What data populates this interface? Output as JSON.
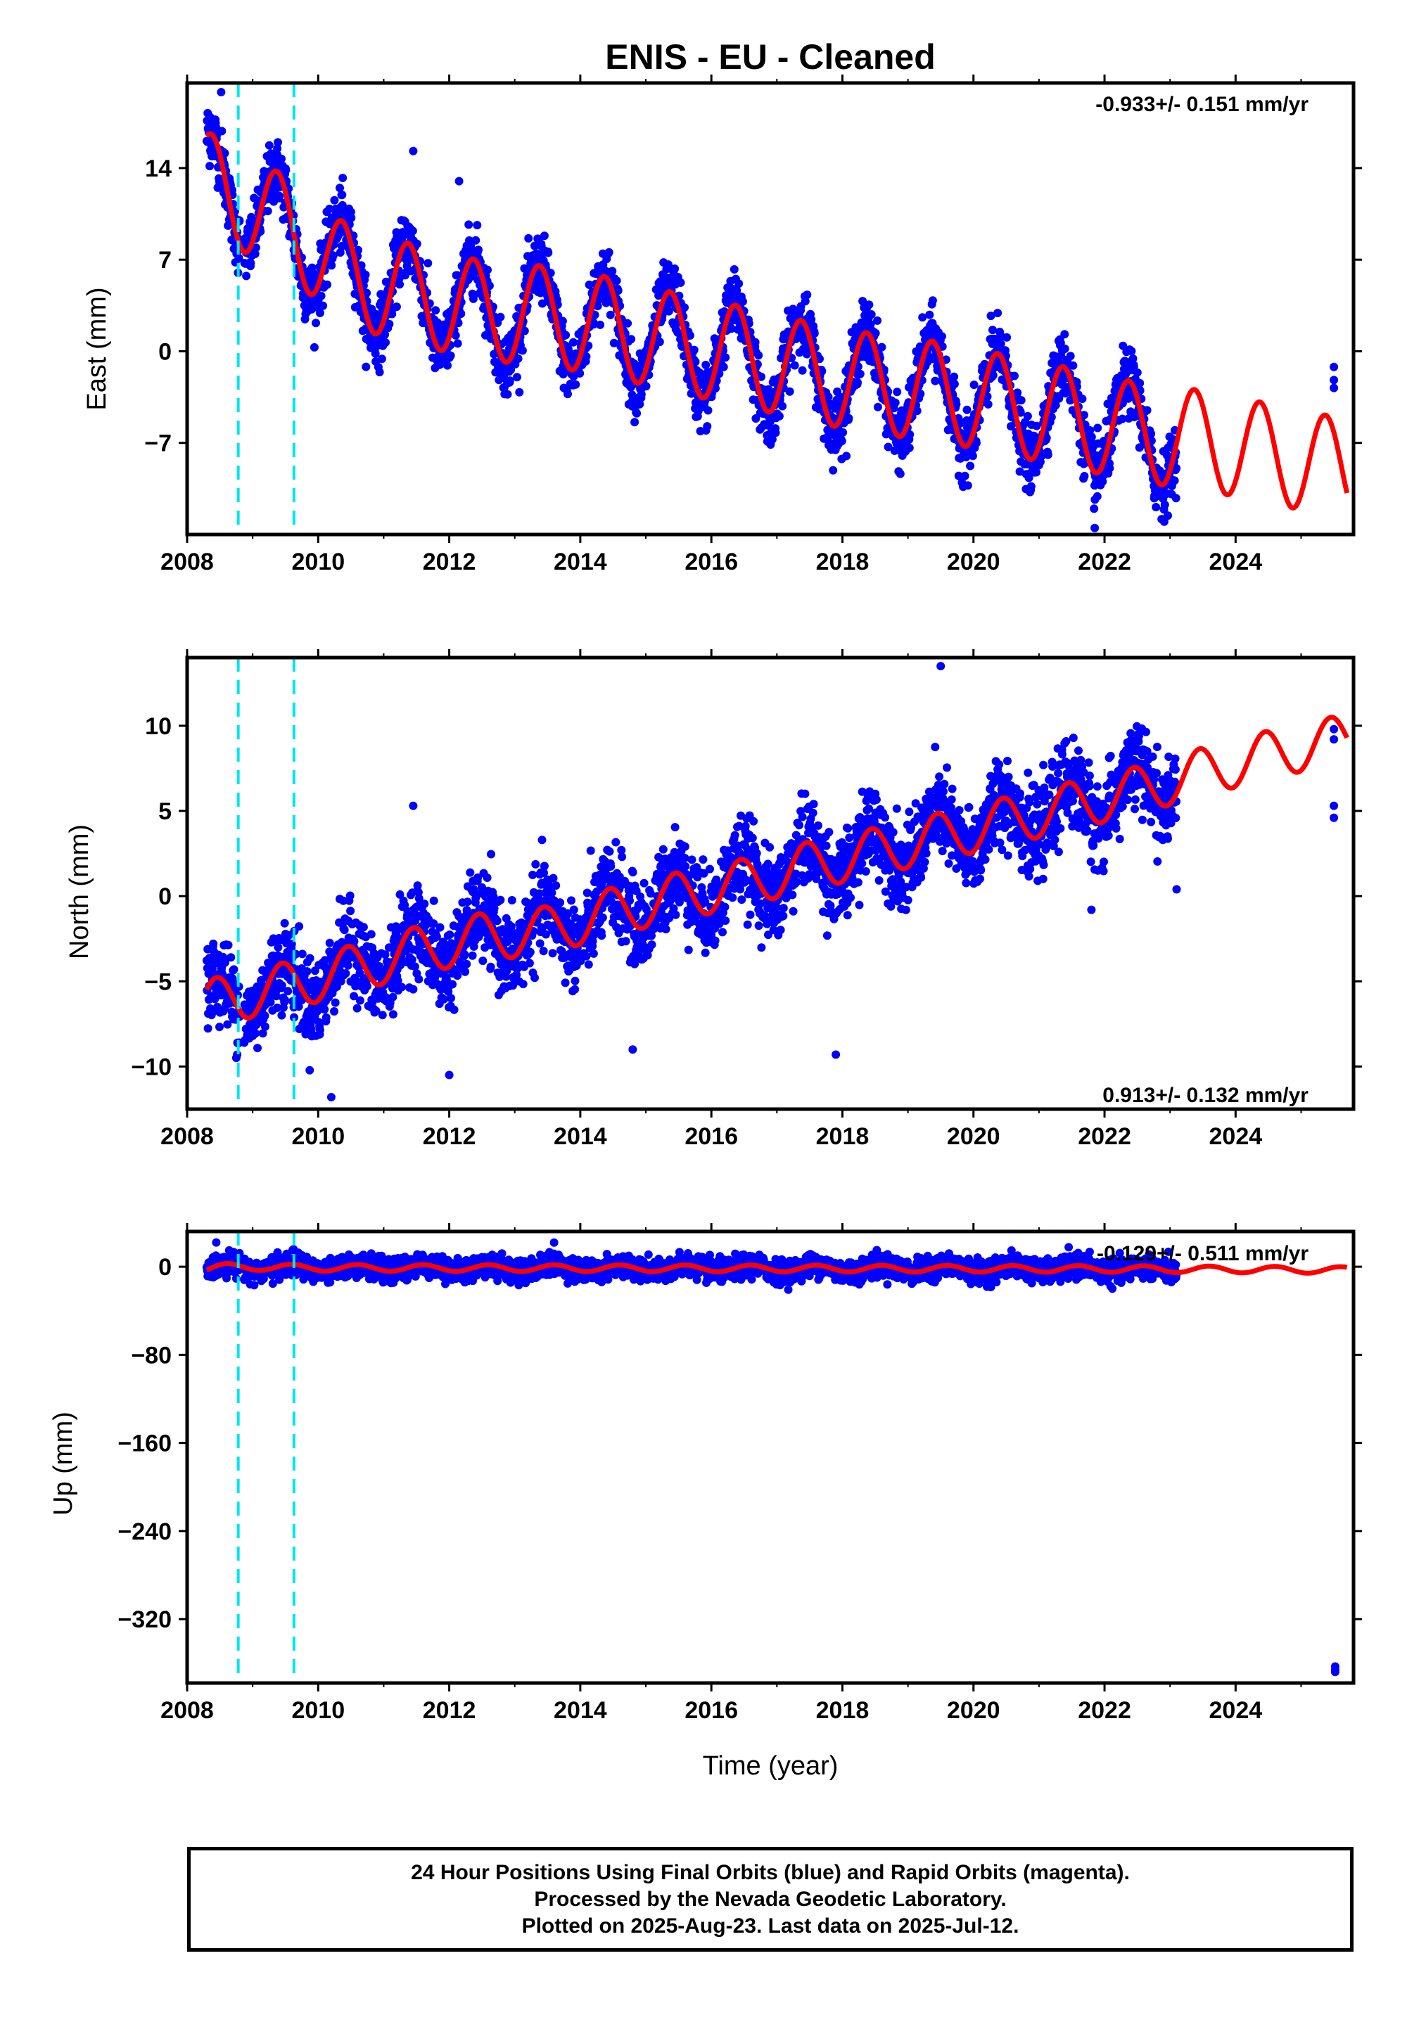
{
  "title": "ENIS  - EU - Cleaned",
  "colors": {
    "data": "#0000ff",
    "model": "#ff0000",
    "offset": "#00e5ee",
    "frame": "#000000"
  },
  "footer": {
    "line1": "24 Hour Positions Using Final Orbits (blue) and Rapid Orbits (magenta).",
    "line2": "Processed by the Nevada Geodetic Laboratory.",
    "line3": "Plotted on 2025-Aug-23. Last data on 2025-Jul-12."
  },
  "chart_data": [
    {
      "type": "scatter",
      "ylabel": "East (mm)",
      "xlabel": "",
      "xlim": [
        2008.0,
        2025.8
      ],
      "ylim": [
        -14.0,
        20.5
      ],
      "xticks": [
        "2008",
        "2010",
        "2012",
        "2014",
        "2016",
        "2018",
        "2020",
        "2022",
        "2024"
      ],
      "yticks": [
        14,
        7,
        0,
        -7
      ],
      "ytick_labels": [
        "14",
        "7",
        "0",
        "−7"
      ],
      "rate_label": "-0.933+/- 0.151 mm/yr",
      "rate_position": "top-right",
      "offsets": [
        2008.78,
        2009.63
      ],
      "model": {
        "t0": 2008.3,
        "intercept": 14.0,
        "slope": -0.933,
        "annual_amp": 3.8,
        "annual_peak": 0.37,
        "t_end": 2025.7,
        "knots": [
          [
            2008.3,
            13.0
          ],
          [
            2009.6,
            9.3
          ],
          [
            2010.5,
            5.6
          ],
          [
            2011.5,
            4.3
          ],
          [
            2012.5,
            3.1
          ],
          [
            2013.5,
            2.7
          ],
          [
            2014.5,
            1.8
          ],
          [
            2015.5,
            0.6
          ],
          [
            2016.5,
            -0.4
          ],
          [
            2017.5,
            -1.6
          ],
          [
            2018.5,
            -2.5
          ],
          [
            2019.5,
            -3.1
          ],
          [
            2020.5,
            -4.1
          ],
          [
            2021.5,
            -5.1
          ],
          [
            2022.5,
            -6.2
          ],
          [
            2023.5,
            -6.8
          ],
          [
            2024.5,
            -7.8
          ],
          [
            2025.7,
            -9.0
          ]
        ]
      },
      "data_span": [
        2008.3,
        2023.1
      ],
      "scatter_sd": 1.2,
      "extra_points": [
        [
          2008.35,
          17.9
        ],
        [
          2008.52,
          19.8
        ],
        [
          2011.45,
          15.3
        ],
        [
          2012.15,
          13.0
        ],
        [
          2021.85,
          -13.5
        ],
        [
          2025.5,
          -1.2
        ],
        [
          2025.5,
          -2.2
        ],
        [
          2025.5,
          -2.8
        ]
      ]
    },
    {
      "type": "scatter",
      "ylabel": "North (mm)",
      "xlabel": "",
      "xlim": [
        2008.0,
        2025.8
      ],
      "ylim": [
        -12.5,
        14.0
      ],
      "xticks": [
        "2008",
        "2010",
        "2012",
        "2014",
        "2016",
        "2018",
        "2020",
        "2022",
        "2024"
      ],
      "yticks": [
        10,
        5,
        0,
        -5,
        -10
      ],
      "ytick_labels": [
        "10",
        "5",
        "0",
        "−5",
        "−10"
      ],
      "rate_label": "0.913+/- 0.132 mm/yr",
      "rate_position": "bottom-right",
      "offsets": [
        2008.78,
        2009.63
      ],
      "model": {
        "t0": 2008.3,
        "intercept": -6.2,
        "slope": 0.913,
        "annual_amp": 1.4,
        "annual_peak": 0.45,
        "t_end": 2025.7,
        "knots": [
          [
            2008.3,
            -6.3
          ],
          [
            2009.6,
            -5.2
          ],
          [
            2010.5,
            -4.3
          ],
          [
            2011.5,
            -3.2
          ],
          [
            2012.5,
            -2.4
          ],
          [
            2013.5,
            -2.0
          ],
          [
            2014.5,
            -0.9
          ],
          [
            2015.5,
            0.0
          ],
          [
            2016.5,
            0.8
          ],
          [
            2017.5,
            1.8
          ],
          [
            2018.5,
            2.6
          ],
          [
            2019.5,
            3.5
          ],
          [
            2020.5,
            4.4
          ],
          [
            2021.5,
            5.3
          ],
          [
            2022.5,
            6.2
          ],
          [
            2023.5,
            7.3
          ],
          [
            2024.5,
            8.3
          ],
          [
            2025.7,
            9.3
          ]
        ]
      },
      "data_span": [
        2008.3,
        2023.1
      ],
      "scatter_sd": 1.2,
      "extra_points": [
        [
          2011.45,
          5.3
        ],
        [
          2012.0,
          -10.5
        ],
        [
          2014.8,
          -9.0
        ],
        [
          2017.9,
          -9.3
        ],
        [
          2010.2,
          -11.8
        ],
        [
          2019.5,
          13.5
        ],
        [
          2021.8,
          -0.8
        ],
        [
          2023.1,
          0.4
        ],
        [
          2025.5,
          9.8
        ],
        [
          2025.5,
          9.2
        ],
        [
          2025.5,
          5.3
        ],
        [
          2025.5,
          4.6
        ]
      ]
    },
    {
      "type": "scatter",
      "ylabel": "Up (mm)",
      "xlabel": "Time (year)",
      "xlim": [
        2008.0,
        2025.8
      ],
      "ylim": [
        -378.0,
        32.0
      ],
      "xticks": [
        "2008",
        "2010",
        "2012",
        "2014",
        "2016",
        "2018",
        "2020",
        "2022",
        "2024"
      ],
      "yticks": [
        0,
        -80,
        -160,
        -240,
        -320
      ],
      "ytick_labels": [
        "0",
        "−80",
        "−160",
        "−240",
        "−320"
      ],
      "rate_label": "-0.129+/- 0.511 mm/yr",
      "rate_position": "top-right",
      "offsets": [
        2008.78,
        2009.63
      ],
      "model": {
        "t0": 2008.3,
        "intercept": 0.0,
        "slope": -0.129,
        "annual_amp": 3.0,
        "annual_peak": 0.6,
        "t_end": 2025.7,
        "knots": [
          [
            2008.3,
            -2.0
          ],
          [
            2008.6,
            0.0
          ],
          [
            2010.0,
            -1.0
          ],
          [
            2016.0,
            -1.5
          ],
          [
            2022.0,
            -2.0
          ],
          [
            2025.7,
            -3.0
          ]
        ]
      },
      "data_span": [
        2008.3,
        2023.1
      ],
      "scatter_sd": 5.0,
      "extra_points": [
        [
          2013.6,
          22.0
        ],
        [
          2025.52,
          -363.0
        ],
        [
          2025.52,
          -366.0
        ],
        [
          2025.52,
          -368.0
        ]
      ]
    }
  ]
}
